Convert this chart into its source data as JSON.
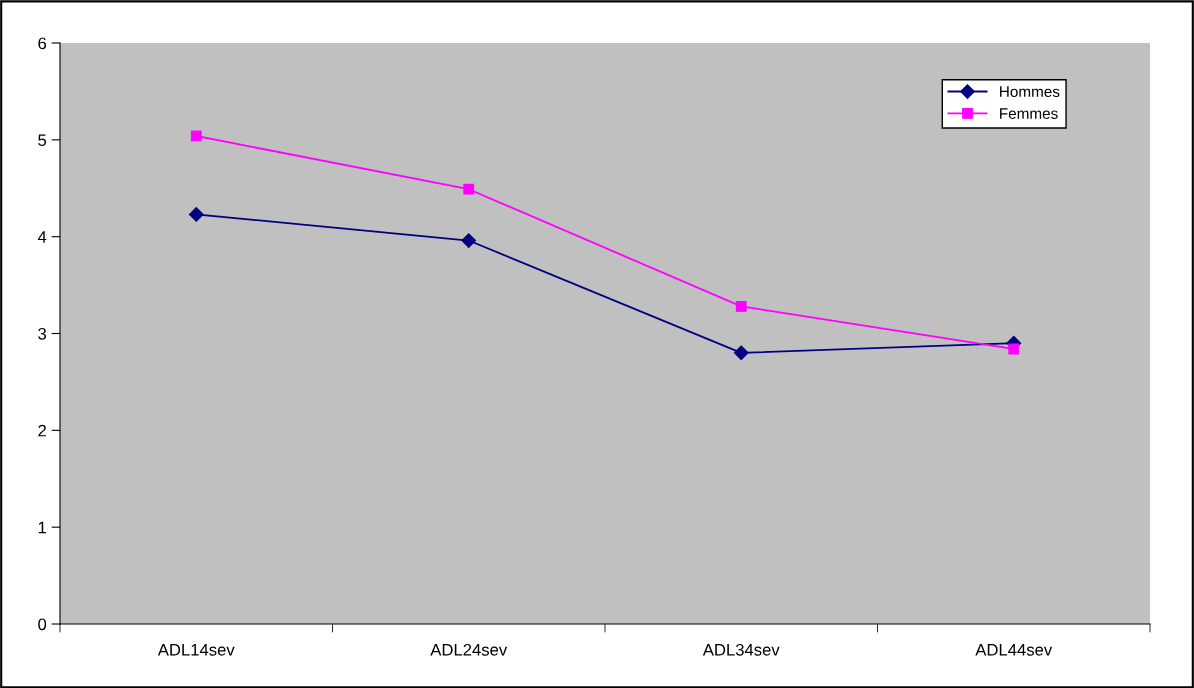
{
  "chart_data": {
    "type": "line",
    "categories": [
      "ADL14sev",
      "ADL24sev",
      "ADL34sev",
      "ADL44sev"
    ],
    "series": [
      {
        "name": "Hommes",
        "color": "#000080",
        "marker": "diamond",
        "values": [
          4.23,
          3.96,
          2.8,
          2.9
        ]
      },
      {
        "name": "Femmes",
        "color": "#ff00ff",
        "marker": "square",
        "values": [
          5.04,
          4.49,
          3.28,
          2.84
        ]
      }
    ],
    "ylim": [
      0,
      6
    ],
    "yticks": [
      0,
      1,
      2,
      3,
      4,
      5,
      6
    ],
    "grid": false,
    "legend": "top right"
  }
}
